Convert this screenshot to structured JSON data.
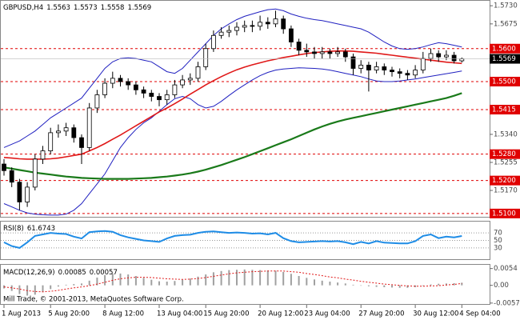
{
  "chart_data": {
    "type": "candlestick",
    "title": "GBPUSD,H4",
    "title_values": [
      "1.5563",
      "1.5573",
      "1.5558",
      "1.5569"
    ],
    "categories": [
      "1 Aug 2013",
      null,
      null,
      null,
      null,
      null,
      "5 Aug 20:00",
      null,
      null,
      null,
      null,
      null,
      null,
      "8 Aug 12:00",
      null,
      null,
      null,
      null,
      null,
      null,
      "13 Aug 04:00",
      null,
      null,
      null,
      null,
      null,
      "15 Aug 20:00",
      null,
      null,
      null,
      null,
      null,
      null,
      "20 Aug 12:00",
      null,
      null,
      null,
      null,
      null,
      "23 Aug 04:00",
      null,
      null,
      null,
      null,
      null,
      null,
      "27 Aug 20:00",
      null,
      null,
      null,
      null,
      null,
      null,
      "30 Aug 12:00",
      null,
      null,
      null,
      null,
      null,
      "4 Sep 04:00"
    ],
    "open": [
      1.525,
      1.523,
      1.5195,
      1.5135,
      1.518,
      1.5265,
      1.529,
      1.5345,
      1.535,
      1.536,
      1.533,
      1.53,
      1.542,
      1.546,
      1.5495,
      1.551,
      1.55,
      1.549,
      1.5475,
      1.5465,
      1.5455,
      1.5445,
      1.546,
      1.549,
      1.5505,
      1.551,
      1.5545,
      1.56,
      1.564,
      1.565,
      1.5655,
      1.5665,
      1.567,
      1.5668,
      1.568,
      1.5675,
      1.569,
      1.566,
      1.562,
      1.5595,
      1.559,
      1.5585,
      1.559,
      1.5585,
      1.559,
      1.5575,
      1.554,
      1.555,
      1.5535,
      1.5545,
      1.5535,
      1.553,
      1.5525,
      1.552,
      1.5535,
      1.557,
      1.5585,
      1.5575,
      1.558,
      1.5563
    ],
    "high": [
      1.5265,
      1.524,
      1.5205,
      1.5195,
      1.528,
      1.5305,
      1.536,
      1.537,
      1.5375,
      1.537,
      1.534,
      1.5435,
      1.5475,
      1.551,
      1.553,
      1.552,
      1.551,
      1.55,
      1.5485,
      1.5475,
      1.5465,
      1.5475,
      1.5505,
      1.552,
      1.5525,
      1.556,
      1.5615,
      1.5655,
      1.5665,
      1.567,
      1.568,
      1.5685,
      1.5685,
      1.57,
      1.5695,
      1.5715,
      1.57,
      1.567,
      1.563,
      1.5615,
      1.5605,
      1.5605,
      1.56,
      1.5605,
      1.56,
      1.5585,
      1.5565,
      1.556,
      1.556,
      1.5555,
      1.5545,
      1.554,
      1.5535,
      1.555,
      1.559,
      1.56,
      1.5595,
      1.5595,
      1.559,
      1.5573
    ],
    "low": [
      1.5215,
      1.518,
      1.511,
      1.512,
      1.517,
      1.525,
      1.528,
      1.533,
      1.5335,
      1.5315,
      1.525,
      1.529,
      1.5405,
      1.545,
      1.548,
      1.5485,
      1.5475,
      1.546,
      1.545,
      1.544,
      1.5425,
      1.543,
      1.545,
      1.548,
      1.549,
      1.55,
      1.5535,
      1.559,
      1.563,
      1.5635,
      1.564,
      1.565,
      1.565,
      1.5655,
      1.566,
      1.5665,
      1.5645,
      1.5605,
      1.558,
      1.5575,
      1.557,
      1.557,
      1.557,
      1.5575,
      1.556,
      1.552,
      1.5525,
      1.547,
      1.5525,
      1.552,
      1.5515,
      1.551,
      1.5505,
      1.551,
      1.5525,
      1.556,
      1.556,
      1.5565,
      1.5555,
      1.5558
    ],
    "close": [
      1.523,
      1.5195,
      1.5135,
      1.518,
      1.5265,
      1.529,
      1.5345,
      1.535,
      1.536,
      1.533,
      1.53,
      1.542,
      1.546,
      1.5495,
      1.551,
      1.55,
      1.549,
      1.5475,
      1.5465,
      1.5455,
      1.5445,
      1.546,
      1.549,
      1.5505,
      1.551,
      1.5545,
      1.56,
      1.564,
      1.565,
      1.5655,
      1.5665,
      1.567,
      1.5668,
      1.568,
      1.5675,
      1.569,
      1.566,
      1.562,
      1.5595,
      1.559,
      1.5585,
      1.559,
      1.5585,
      1.559,
      1.5575,
      1.554,
      1.555,
      1.5535,
      1.5545,
      1.5535,
      1.553,
      1.5525,
      1.552,
      1.5535,
      1.557,
      1.5585,
      1.5575,
      1.558,
      1.5563,
      1.5569
    ],
    "up_color": "#ffffff",
    "down_color": "#000000",
    "outline_color": "#000000",
    "lines": [
      {
        "color": "#2020c0",
        "width": 1,
        "values": [
          1.53,
          1.531,
          1.532,
          1.5335,
          1.535,
          1.537,
          1.539,
          1.5405,
          1.542,
          1.5435,
          1.545,
          1.548,
          1.551,
          1.554,
          1.556,
          1.557,
          1.5572,
          1.557,
          1.5565,
          1.556,
          1.5545,
          1.553,
          1.5525,
          1.554,
          1.5565,
          1.559,
          1.5615,
          1.564,
          1.566,
          1.5675,
          1.5688,
          1.5698,
          1.5705,
          1.5712,
          1.5718,
          1.572,
          1.5715,
          1.5705,
          1.5698,
          1.5692,
          1.5688,
          1.5685,
          1.568,
          1.5675,
          1.567,
          1.5665,
          1.566,
          1.565,
          1.5635,
          1.562,
          1.5608,
          1.56,
          1.5598,
          1.56,
          1.5605,
          1.5612,
          1.5618,
          1.5615,
          1.561,
          1.5605
        ]
      },
      {
        "color": "#2020c0",
        "width": 1,
        "values": [
          1.513,
          1.512,
          1.511,
          1.5102,
          1.5098,
          1.5096,
          1.5095,
          1.5095,
          1.5098,
          1.511,
          1.513,
          1.516,
          1.519,
          1.522,
          1.526,
          1.53,
          1.533,
          1.5355,
          1.5375,
          1.539,
          1.541,
          1.543,
          1.5448,
          1.5455,
          1.5448,
          1.543,
          1.542,
          1.5425,
          1.544,
          1.5458,
          1.5475,
          1.549,
          1.5505,
          1.5518,
          1.5528,
          1.5535,
          1.5538,
          1.554,
          1.5542,
          1.5541,
          1.554,
          1.5538,
          1.5535,
          1.553,
          1.5525,
          1.552,
          1.5515,
          1.5508,
          1.5502,
          1.55,
          1.55,
          1.5502,
          1.5505,
          1.5508,
          1.5512,
          1.5516,
          1.552,
          1.5524,
          1.5528,
          1.5532
        ]
      },
      {
        "color": "#e01818",
        "width": 1.6,
        "values": [
          1.527,
          1.5268,
          1.5266,
          1.5265,
          1.5265,
          1.5265,
          1.5266,
          1.5268,
          1.5272,
          1.5276,
          1.528,
          1.529,
          1.53,
          1.5312,
          1.5325,
          1.5338,
          1.5352,
          1.5366,
          1.538,
          1.5394,
          1.5408,
          1.542,
          1.5433,
          1.5447,
          1.5462,
          1.5476,
          1.549,
          1.5503,
          1.5515,
          1.5526,
          1.5536,
          1.5544,
          1.5551,
          1.5557,
          1.5563,
          1.5568,
          1.5573,
          1.5577,
          1.5581,
          1.5585,
          1.5588,
          1.559,
          1.5592,
          1.5593,
          1.5593,
          1.5592,
          1.559,
          1.5588,
          1.5586,
          1.5583,
          1.558,
          1.5577,
          1.5574,
          1.5571,
          1.5568,
          1.5565,
          1.5562,
          1.5559,
          1.5557,
          1.5555
        ]
      },
      {
        "color": "#1a7a1a",
        "width": 2.2,
        "values": [
          1.524,
          1.5236,
          1.5232,
          1.5228,
          1.5224,
          1.5221,
          1.5218,
          1.5215,
          1.5212,
          1.521,
          1.5208,
          1.5207,
          1.5206,
          1.5205,
          1.5205,
          1.5205,
          1.5205,
          1.5206,
          1.5207,
          1.5208,
          1.521,
          1.5212,
          1.5215,
          1.5218,
          1.5222,
          1.5227,
          1.5233,
          1.524,
          1.5247,
          1.5255,
          1.5263,
          1.5271,
          1.528,
          1.5289,
          1.5298,
          1.5307,
          1.5316,
          1.5325,
          1.5335,
          1.5345,
          1.5355,
          1.5364,
          1.5372,
          1.5379,
          1.5385,
          1.539,
          1.5395,
          1.54,
          1.5405,
          1.541,
          1.5415,
          1.542,
          1.5425,
          1.543,
          1.5435,
          1.544,
          1.5445,
          1.545,
          1.5457,
          1.5465
        ]
      }
    ],
    "ylim": [
      1.509,
      1.5745
    ],
    "yticks": [
      {
        "value": 1.573,
        "label": "1.5730"
      },
      {
        "value": 1.5675,
        "label": "1.5675"
      },
      {
        "value": 1.534,
        "label": "1.5340"
      },
      {
        "value": 1.5255,
        "label": "1.5255"
      },
      {
        "value": 1.517,
        "label": "1.5170"
      }
    ],
    "levels": {
      "color": "#e00000",
      "ticks": [
        {
          "value": 1.56,
          "label": "1.5600"
        },
        {
          "value": 1.55,
          "label": "1.5500"
        },
        {
          "value": 1.5415,
          "label": "1.5415"
        },
        {
          "value": 1.528,
          "label": "1.5280"
        },
        {
          "value": 1.52,
          "label": "1.5200"
        },
        {
          "value": 1.51,
          "label": "1.5100"
        }
      ]
    },
    "last_price": {
      "value": 1.5569,
      "label": "1.5569"
    },
    "rsi": {
      "label": "RSI(8)",
      "value_label": "61.6743",
      "color": "#1e8ce6",
      "ylim": [
        0,
        100
      ],
      "yticks": [
        70,
        50,
        30
      ],
      "values": [
        45,
        35,
        30,
        45,
        62,
        66,
        70,
        68,
        67,
        60,
        55,
        72,
        74,
        75,
        73,
        64,
        58,
        54,
        50,
        48,
        46,
        55,
        62,
        64,
        65,
        70,
        73,
        74,
        72,
        70,
        71,
        70,
        68,
        69,
        66,
        70,
        56,
        48,
        45,
        46,
        47,
        48,
        47,
        48,
        45,
        40,
        46,
        42,
        48,
        44,
        43,
        42,
        42,
        48,
        62,
        66,
        56,
        60,
        58,
        61.6743
      ]
    },
    "macd": {
      "label": "MACD(12,26,9)",
      "value_labels": [
        "0.00085",
        "0.00057"
      ],
      "histogram_color": "#a0a0a0",
      "signal_color": "#e01818",
      "ylim": [
        -0.006,
        0.0066
      ],
      "yticks": [
        0.0054,
        {
          "value": 0,
          "label": "0.00"
        },
        -0.0057
      ],
      "histogram": [
        -0.001,
        -0.0018,
        -0.0028,
        -0.0033,
        -0.003,
        -0.0022,
        -0.0012,
        -0.0004,
        0.0002,
        0.0004,
        0.0006,
        0.0015,
        0.0025,
        0.0033,
        0.0038,
        0.0038,
        0.0035,
        0.003,
        0.0024,
        0.0018,
        0.0013,
        0.0012,
        0.0014,
        0.0018,
        0.0022,
        0.0028,
        0.0035,
        0.0042,
        0.0046,
        0.0049,
        0.005,
        0.0051,
        0.005,
        0.0049,
        0.0048,
        0.0047,
        0.0043,
        0.0037,
        0.003,
        0.0024,
        0.0019,
        0.0015,
        0.0012,
        0.0009,
        0.0006,
        0.0002,
        0.0,
        -0.0003,
        -0.0005,
        -0.0006,
        -0.0007,
        -0.0008,
        -0.0008,
        -0.0006,
        -0.0002,
        0.0003,
        0.0005,
        0.0006,
        0.0007,
        0.00085
      ],
      "signal": [
        -0.0005,
        -0.0008,
        -0.0012,
        -0.0017,
        -0.002,
        -0.0021,
        -0.0019,
        -0.0016,
        -0.0012,
        -0.0008,
        -0.0005,
        -0.0001,
        0.0004,
        0.001,
        0.0016,
        0.0021,
        0.0024,
        0.0026,
        0.0026,
        0.0025,
        0.0023,
        0.0021,
        0.002,
        0.0019,
        0.002,
        0.0022,
        0.0025,
        0.0029,
        0.0033,
        0.0037,
        0.004,
        0.0042,
        0.0044,
        0.0045,
        0.0046,
        0.0046,
        0.0046,
        0.0044,
        0.0042,
        0.0038,
        0.0035,
        0.0031,
        0.0027,
        0.0024,
        0.002,
        0.0017,
        0.0013,
        0.001,
        0.0007,
        0.0004,
        0.0002,
        0.0,
        -0.0002,
        -0.0003,
        -0.0003,
        -0.0002,
        -0.0001,
        0.0001,
        0.0003,
        0.00057
      ]
    },
    "copyright": "Mill Trade, © 2001-2013, MetaQuotes Software Corp."
  }
}
